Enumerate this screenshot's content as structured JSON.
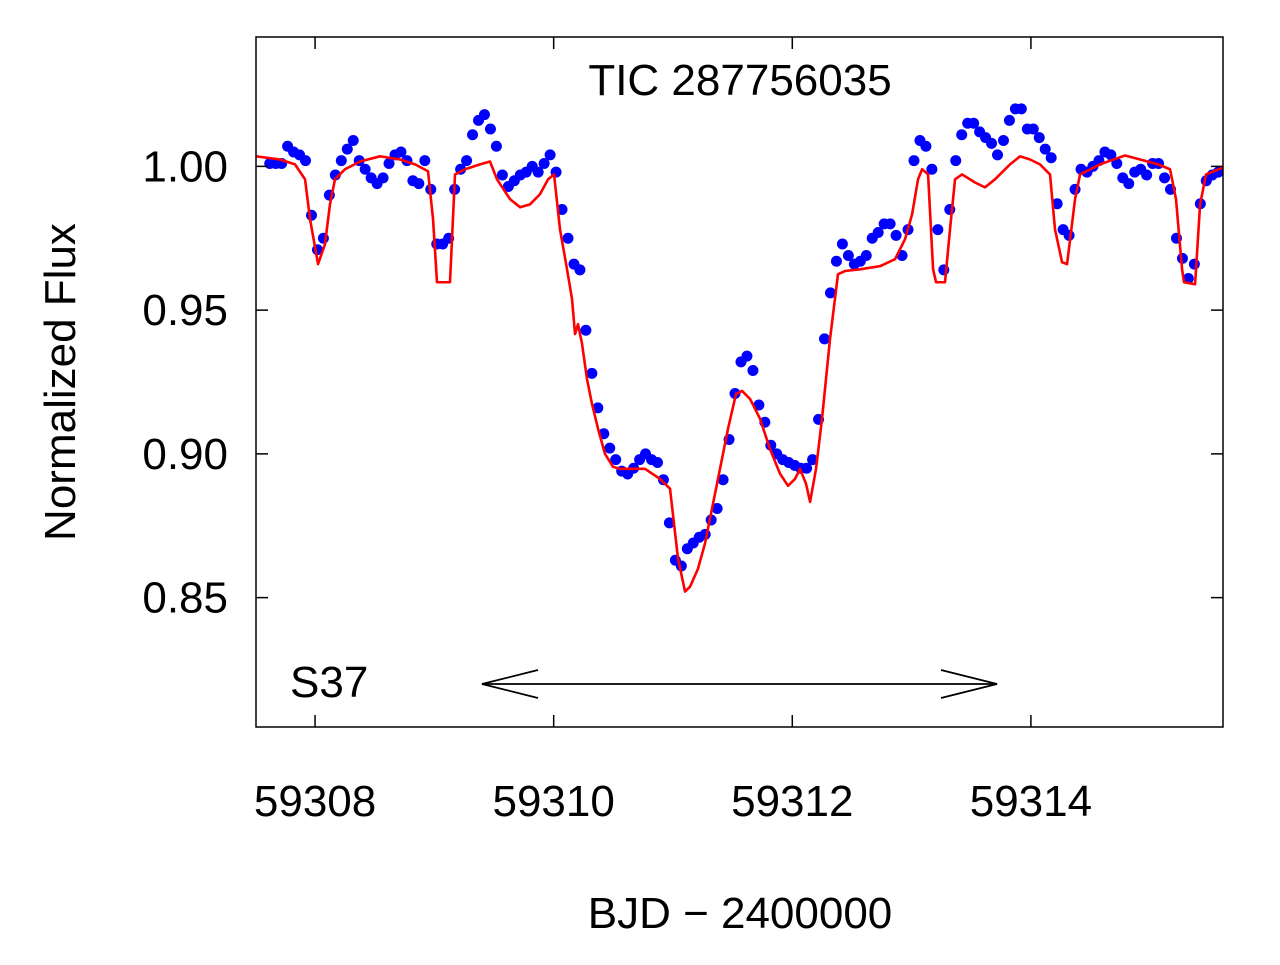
{
  "chart_data": {
    "type": "scatter",
    "title": "TIC 287756035",
    "annotation": "S37",
    "xlabel": "BJD − 2400000",
    "ylabel": "Normalized Flux",
    "xlim": [
      59307.505,
      59315.61
    ],
    "ylim": [
      0.805,
      1.045
    ],
    "xticks": [
      59308,
      59310,
      59312,
      59314
    ],
    "yticks": [
      {
        "value": 1.0,
        "label": "1.00"
      },
      {
        "value": 0.95,
        "label": "0.95"
      },
      {
        "value": 0.9,
        "label": "0.90"
      },
      {
        "value": 0.85,
        "label": "0.85"
      }
    ],
    "series": [
      {
        "type": "scatter",
        "color": "#0000ff",
        "x": [
          59307.62,
          59307.67,
          59307.72,
          59307.77,
          59307.82,
          59307.87,
          59307.92,
          59307.97,
          59308.02,
          59308.07,
          59308.12,
          59308.17,
          59308.22,
          59308.27,
          59308.32,
          59308.37,
          59308.42,
          59308.47,
          59308.52,
          59308.57,
          59308.62,
          59308.67,
          59308.72,
          59308.77,
          59308.82,
          59308.87,
          59308.92,
          59308.97,
          59309.02,
          59309.07,
          59309.12,
          59309.17,
          59309.22,
          59309.27,
          59309.32,
          59309.37,
          59309.42,
          59309.47,
          59309.52,
          59309.57,
          59309.62,
          59309.67,
          59309.72,
          59309.77,
          59309.82,
          59309.87,
          59309.92,
          59309.97,
          59310.02,
          59310.07,
          59310.12,
          59310.17,
          59310.22,
          59310.27,
          59310.32,
          59310.37,
          59310.42,
          59310.47,
          59310.52,
          59310.57,
          59310.62,
          59310.67,
          59310.72,
          59310.77,
          59310.82,
          59310.87,
          59310.92,
          59310.97,
          59311.02,
          59311.07,
          59311.12,
          59311.17,
          59311.22,
          59311.27,
          59311.32,
          59311.37,
          59311.42,
          59311.47,
          59311.52,
          59311.57,
          59311.62,
          59311.67,
          59311.72,
          59311.77,
          59311.82,
          59311.87,
          59311.92,
          59311.97,
          59312.02,
          59312.07,
          59312.12,
          59312.17,
          59312.22,
          59312.27,
          59312.32,
          59312.37,
          59312.42,
          59312.47,
          59312.52,
          59312.57,
          59312.62,
          59312.67,
          59312.72,
          59312.77,
          59312.82,
          59312.87,
          59312.92,
          59312.97,
          59313.02,
          59313.07,
          59313.12,
          59313.17,
          59313.22,
          59313.27,
          59313.32,
          59313.37,
          59313.42,
          59313.47,
          59313.52,
          59313.57,
          59313.62,
          59313.67,
          59313.72,
          59313.77,
          59313.82,
          59313.87,
          59313.92,
          59313.97,
          59314.02,
          59314.07,
          59314.12,
          59314.17,
          59314.22,
          59314.27,
          59314.32,
          59314.37,
          59314.42,
          59314.47,
          59314.52,
          59314.57,
          59314.62,
          59314.67,
          59314.72,
          59314.77,
          59314.82,
          59314.87,
          59314.92,
          59314.97,
          59315.02,
          59315.07,
          59315.12,
          59315.17,
          59315.22,
          59315.27,
          59315.32,
          59315.37,
          59315.42,
          59315.47,
          59315.52,
          59315.57
        ],
        "values": [
          1.001,
          1.001,
          1.001,
          1.007,
          1.005,
          1.004,
          1.002,
          0.983,
          0.971,
          0.975,
          0.99,
          0.997,
          1.002,
          1.006,
          1.009,
          1.002,
          0.999,
          0.996,
          0.994,
          0.996,
          1.001,
          1.004,
          1.005,
          1.002,
          0.995,
          0.994,
          1.002,
          0.992,
          0.973,
          0.973,
          0.975,
          0.992,
          0.999,
          1.002,
          1.011,
          1.016,
          1.018,
          1.013,
          1.007,
          0.997,
          0.993,
          0.995,
          0.997,
          0.998,
          1.0,
          0.998,
          1.001,
          1.004,
          0.998,
          0.985,
          0.975,
          0.966,
          0.964,
          0.943,
          0.928,
          0.916,
          0.907,
          0.902,
          0.898,
          0.894,
          0.893,
          0.895,
          0.898,
          0.9,
          0.898,
          0.897,
          0.891,
          0.876,
          0.863,
          0.861,
          0.867,
          0.869,
          0.871,
          0.872,
          0.877,
          0.881,
          0.891,
          0.905,
          0.921,
          0.932,
          0.934,
          0.929,
          0.917,
          0.911,
          0.903,
          0.9,
          0.898,
          0.897,
          0.896,
          0.895,
          0.895,
          0.898,
          0.912,
          0.94,
          0.956,
          0.967,
          0.973,
          0.969,
          0.966,
          0.967,
          0.969,
          0.975,
          0.977,
          0.98,
          0.98,
          0.976,
          0.969,
          0.978,
          1.002,
          1.009,
          1.007,
          0.999,
          0.978,
          0.964,
          0.985,
          1.002,
          1.011,
          1.015,
          1.015,
          1.012,
          1.01,
          1.008,
          1.004,
          1.009,
          1.016,
          1.02,
          1.02,
          1.013,
          1.013,
          1.01,
          1.006,
          1.003,
          0.987,
          0.978,
          0.976,
          0.992,
          0.999,
          0.998,
          1.0,
          1.002,
          1.005,
          1.004,
          1.001,
          0.996,
          0.994,
          0.998,
          0.999,
          0.997,
          1.001,
          1.001,
          0.996,
          0.992,
          0.975,
          0.968,
          0.961,
          0.966,
          0.987,
          0.995,
          0.997,
          0.998
        ]
      },
      {
        "type": "line",
        "color": "#ff0000",
        "x": [
          59307.505,
          59307.706,
          59307.832,
          59307.916,
          59307.958,
          59308.025,
          59308.083,
          59308.125,
          59308.167,
          59308.251,
          59308.377,
          59308.544,
          59308.712,
          59308.838,
          59308.947,
          59308.989,
          59309.022,
          59309.131,
          59309.173,
          59309.257,
          59309.383,
          59309.466,
          59309.525,
          59309.634,
          59309.718,
          59309.802,
          59309.885,
          59309.953,
          59310.003,
          59310.053,
          59310.112,
          59310.154,
          59310.179,
          59310.204,
          59310.238,
          59310.279,
          59310.321,
          59310.372,
          59310.43,
          59310.497,
          59310.556,
          59310.765,
          59310.891,
          59310.975,
          59311.042,
          59311.101,
          59311.143,
          59311.21,
          59311.268,
          59311.327,
          59311.394,
          59311.461,
          59311.528,
          59311.579,
          59311.646,
          59311.73,
          59311.813,
          59311.897,
          59311.964,
          59312.023,
          59312.065,
          59312.115,
          59312.149,
          59312.199,
          59312.249,
          59312.316,
          59312.383,
          59312.442,
          59312.568,
          59312.735,
          59312.861,
          59312.945,
          59313.004,
          59313.054,
          59313.088,
          59313.138,
          59313.18,
          59313.205,
          59313.28,
          59313.322,
          59313.364,
          59313.423,
          59313.532,
          59313.615,
          59313.699,
          59313.825,
          59313.909,
          59313.993,
          59314.076,
          59314.16,
          59314.202,
          59314.261,
          59314.303,
          59314.37,
          59314.412,
          59314.579,
          59314.789,
          59314.915,
          59315.065,
          59315.166,
          59315.216,
          59315.267,
          59315.283,
          59315.376,
          59315.418,
          59315.468,
          59315.61
        ],
        "values": [
          1.0035,
          1.0024,
          1.0007,
          0.9955,
          0.9816,
          0.966,
          0.9729,
          0.9868,
          0.9955,
          0.999,
          1.0017,
          1.0035,
          1.0024,
          1.0007,
          0.9983,
          0.9816,
          0.9597,
          0.9597,
          0.9972,
          0.999,
          1.0007,
          1.0017,
          0.9955,
          0.9886,
          0.9858,
          0.9868,
          0.9903,
          0.9955,
          0.9972,
          0.9781,
          0.9642,
          0.9538,
          0.9417,
          0.9451,
          0.9382,
          0.9261,
          0.9174,
          0.9087,
          0.9,
          0.8955,
          0.8948,
          0.8948,
          0.8913,
          0.8879,
          0.8636,
          0.8521,
          0.8538,
          0.8601,
          0.8688,
          0.8809,
          0.8948,
          0.9087,
          0.9208,
          0.9219,
          0.9191,
          0.9122,
          0.9017,
          0.8931,
          0.8889,
          0.8913,
          0.8948,
          0.8896,
          0.8833,
          0.8948,
          0.9122,
          0.9399,
          0.9625,
          0.9636,
          0.9642,
          0.9653,
          0.9677,
          0.9747,
          0.9833,
          0.9955,
          0.999,
          0.9972,
          0.9642,
          0.9597,
          0.9597,
          0.9781,
          0.9955,
          0.9972,
          0.9944,
          0.9927,
          0.9955,
          1.0007,
          1.0035,
          1.0024,
          1.0007,
          0.9972,
          0.9781,
          0.9667,
          0.966,
          0.9886,
          0.9972,
          1.0007,
          1.0038,
          1.0024,
          1.0007,
          0.999,
          0.9886,
          0.9642,
          0.9597,
          0.959,
          0.9868,
          0.9972,
          0.9996
        ]
      }
    ]
  }
}
